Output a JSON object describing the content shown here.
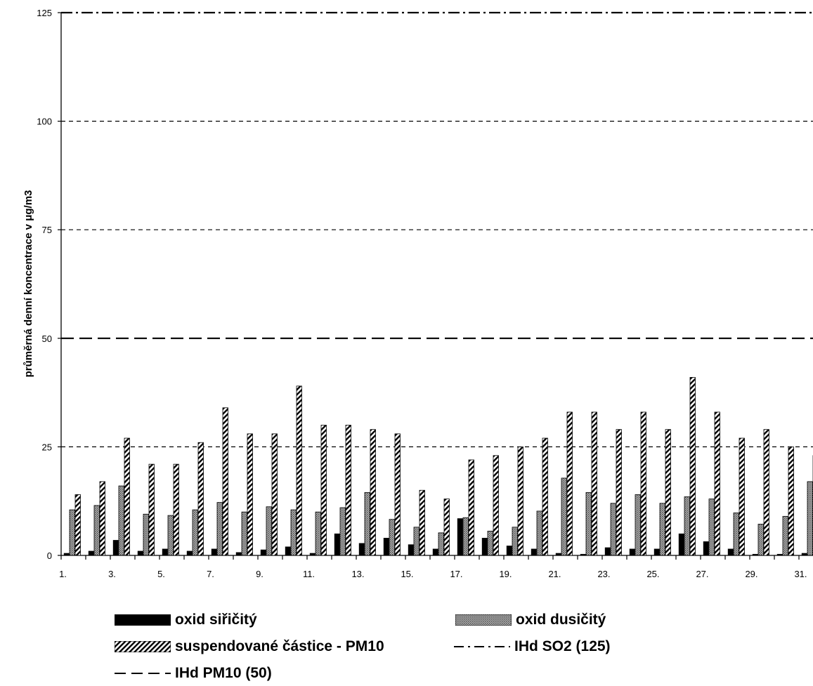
{
  "chart_data": {
    "type": "bar",
    "title": "",
    "xlabel": "",
    "ylabel": "průměrná denní koncentrace v μg/m3",
    "ylim": [
      0,
      125
    ],
    "yticks": [
      "0",
      "25",
      "50",
      "75",
      "100",
      "125"
    ],
    "categories": [
      "1.",
      "2.",
      "3.",
      "4.",
      "5.",
      "6.",
      "7.",
      "8.",
      "9.",
      "10.",
      "11.",
      "12.",
      "13.",
      "14.",
      "15.",
      "16.",
      "17.",
      "18.",
      "19.",
      "20.",
      "21.",
      "22.",
      "23.",
      "24.",
      "25.",
      "26.",
      "27.",
      "28.",
      "29.",
      "30.",
      "31."
    ],
    "xtick_labels": [
      "1.",
      "3.",
      "5.",
      "7.",
      "9.",
      "11.",
      "13.",
      "15.",
      "17.",
      "19.",
      "21.",
      "23.",
      "25.",
      "27.",
      "29.",
      "31."
    ],
    "series": [
      {
        "name": "oxid siřičitý",
        "values": [
          0.5,
          1,
          3.5,
          1,
          1.5,
          1,
          1.5,
          0.7,
          1.3,
          2,
          0.5,
          5,
          2.8,
          4,
          2.5,
          1.5,
          8.5,
          4,
          2.2,
          1.5,
          0.5,
          0.3,
          1.8,
          1.5,
          1.5,
          5,
          3.2,
          1.5,
          0.3,
          0.3,
          0.5
        ]
      },
      {
        "name": "oxid dusičitý",
        "values": [
          10.5,
          11.5,
          16,
          9.5,
          9.2,
          10.5,
          12.2,
          10,
          11.2,
          10.5,
          10,
          11,
          14.5,
          8.3,
          6.5,
          5.2,
          8.7,
          5.6,
          6.5,
          10.2,
          17.8,
          14.5,
          12,
          14,
          12,
          13.5,
          13,
          9.8,
          7.2,
          9,
          17
        ]
      },
      {
        "name": "suspendované částice - PM10",
        "values": [
          14,
          17,
          27,
          21,
          21,
          26,
          34,
          28,
          28,
          39,
          30,
          30,
          29,
          28,
          15,
          13,
          22,
          23,
          25,
          27,
          33,
          33,
          29,
          33,
          29,
          41,
          33,
          27,
          29,
          25,
          23
        ]
      }
    ],
    "reference_lines": [
      {
        "name": "IHd SO2 (125)",
        "value": 125
      },
      {
        "name": "IHd PM10 (50)",
        "value": 50
      }
    ],
    "gridlines": [
      25,
      75,
      100
    ],
    "grid": true,
    "legend_position": "bottom",
    "colors": {
      "so2": "#000000",
      "no2": "#9a9a9a",
      "pm10_stripe": "#000000",
      "background": "#ffffff"
    }
  },
  "legend": {
    "so2": "oxid siřičitý",
    "no2": "oxid dusičitý",
    "pm10": "suspendované částice - PM10",
    "ihd_so2": "IHd SO2 (125)",
    "ihd_pm10": "IHd PM10 (50)"
  }
}
